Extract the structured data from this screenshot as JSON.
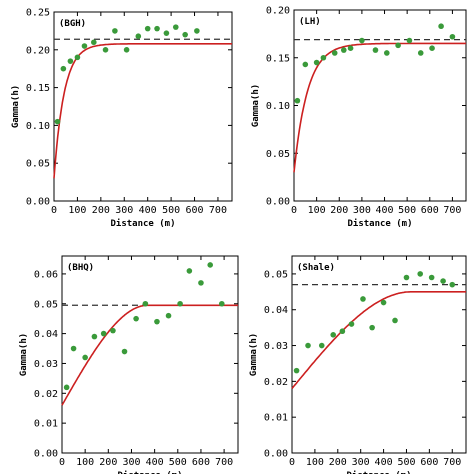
{
  "colors": {
    "points": "#3a9a3a",
    "fit": "#cc2020",
    "sill": "#333333",
    "axes": "#000000"
  },
  "chart_data": [
    {
      "type": "scatter",
      "panel_label": "(BGH)",
      "xlabel": "Distance (m)",
      "ylabel": "Gamma(h)",
      "xlim": [
        0,
        760
      ],
      "ylim": [
        0,
        0.25
      ],
      "xticks": [
        "0",
        "100",
        "200",
        "300",
        "400",
        "500",
        "600",
        "700"
      ],
      "yticks": [
        "0.00",
        "0.05",
        "0.10",
        "0.15",
        "0.20",
        "0.25"
      ],
      "grid": false,
      "points": {
        "x": [
          15,
          40,
          70,
          100,
          130,
          170,
          220,
          260,
          310,
          360,
          400,
          440,
          480,
          520,
          560,
          610
        ],
        "y": [
          0.105,
          0.175,
          0.185,
          0.19,
          0.205,
          0.21,
          0.2,
          0.225,
          0.2,
          0.218,
          0.228,
          0.228,
          0.222,
          0.23,
          0.22,
          0.225
        ]
      },
      "fit": {
        "model": "exponential",
        "nugget": 0.03,
        "sill": 0.208,
        "range": 130
      },
      "sill_line": 0.214
    },
    {
      "type": "scatter",
      "panel_label": "(LH)",
      "xlabel": "Distance (m)",
      "ylabel": "Gamma(h)",
      "xlim": [
        0,
        760
      ],
      "ylim": [
        0,
        0.2
      ],
      "xticks": [
        "0",
        "100",
        "200",
        "300",
        "400",
        "500",
        "600",
        "700"
      ],
      "yticks": [
        "0.00",
        "0.05",
        "0.10",
        "0.15",
        "0.20"
      ],
      "grid": false,
      "points": {
        "x": [
          15,
          50,
          100,
          130,
          180,
          220,
          250,
          300,
          360,
          410,
          460,
          510,
          560,
          610,
          650,
          700
        ],
        "y": [
          0.105,
          0.143,
          0.145,
          0.15,
          0.155,
          0.158,
          0.16,
          0.168,
          0.158,
          0.155,
          0.163,
          0.168,
          0.155,
          0.16,
          0.183,
          0.172
        ]
      },
      "fit": {
        "model": "exponential",
        "nugget": 0.03,
        "sill": 0.165,
        "range": 180
      },
      "sill_line": 0.169
    },
    {
      "type": "scatter",
      "panel_label": "(BHQ)",
      "xlabel": "Distance (m)",
      "ylabel": "Gamma(h)",
      "xlim": [
        0,
        760
      ],
      "ylim": [
        0,
        0.066
      ],
      "xticks": [
        "0",
        "100",
        "200",
        "300",
        "400",
        "500",
        "600",
        "700"
      ],
      "yticks": [
        "0.00",
        "0.01",
        "0.02",
        "0.03",
        "0.04",
        "0.05",
        "0.06"
      ],
      "grid": false,
      "points": {
        "x": [
          20,
          50,
          100,
          140,
          180,
          220,
          270,
          320,
          360,
          410,
          460,
          510,
          550,
          600,
          640,
          690
        ],
        "y": [
          0.022,
          0.035,
          0.032,
          0.039,
          0.04,
          0.041,
          0.034,
          0.045,
          0.05,
          0.044,
          0.046,
          0.05,
          0.061,
          0.057,
          0.063,
          0.05
        ]
      },
      "fit": {
        "model": "spherical",
        "nugget": 0.016,
        "sill": 0.0495,
        "range": 370
      },
      "sill_line": 0.0495
    },
    {
      "type": "scatter",
      "panel_label": "(Shale)",
      "xlabel": "Distance (m)",
      "ylabel": "Gamma(h)",
      "xlim": [
        0,
        760
      ],
      "ylim": [
        0,
        0.055
      ],
      "xticks": [
        "0",
        "100",
        "200",
        "300",
        "400",
        "500",
        "600",
        "700"
      ],
      "yticks": [
        "0.00",
        "0.01",
        "0.02",
        "0.03",
        "0.04",
        "0.05"
      ],
      "grid": false,
      "points": {
        "x": [
          20,
          70,
          130,
          180,
          220,
          260,
          310,
          350,
          400,
          450,
          500,
          560,
          610,
          660,
          700
        ],
        "y": [
          0.023,
          0.03,
          0.03,
          0.033,
          0.034,
          0.036,
          0.043,
          0.035,
          0.042,
          0.037,
          0.049,
          0.05,
          0.049,
          0.048,
          0.047
        ]
      },
      "fit": {
        "model": "spherical",
        "nugget": 0.018,
        "sill": 0.045,
        "range": 520
      },
      "sill_line": 0.047
    }
  ]
}
